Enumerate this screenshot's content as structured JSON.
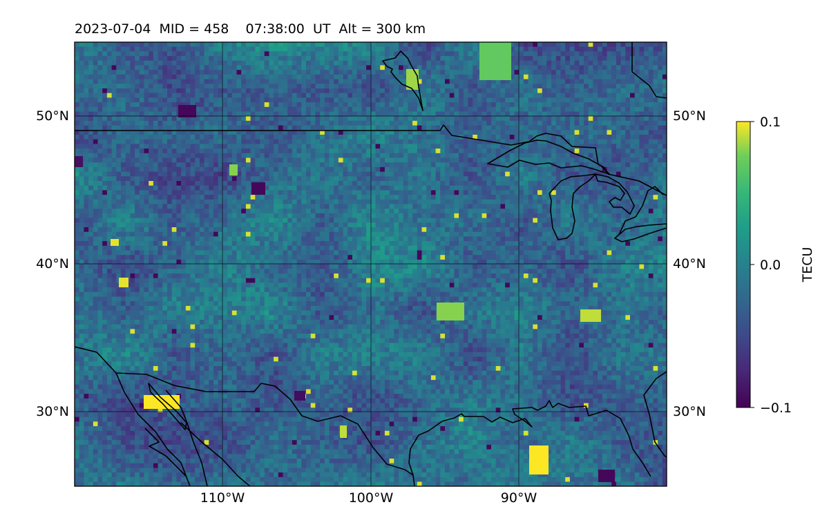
{
  "title": "2023-07-04  MID = 458    07:38:00  UT  Alt = 300 km",
  "map": {
    "lat_ticks": [
      "50°N",
      "40°N",
      "30°N"
    ],
    "lon_ticks": [
      "110°W",
      "100°W",
      "90°W"
    ],
    "lat_range": [
      25,
      55
    ],
    "lon_range": [
      -120,
      -80
    ],
    "gridlines": true
  },
  "colorbar": {
    "label": "TECU",
    "ticks": [
      "0.1",
      "0.0",
      "−0.1"
    ],
    "range": [
      -0.1,
      0.1
    ],
    "colormap": "viridis"
  },
  "colors": {
    "low": "#440154",
    "mid": "#21918c",
    "high": "#fde725",
    "coastline": "#000000"
  }
}
